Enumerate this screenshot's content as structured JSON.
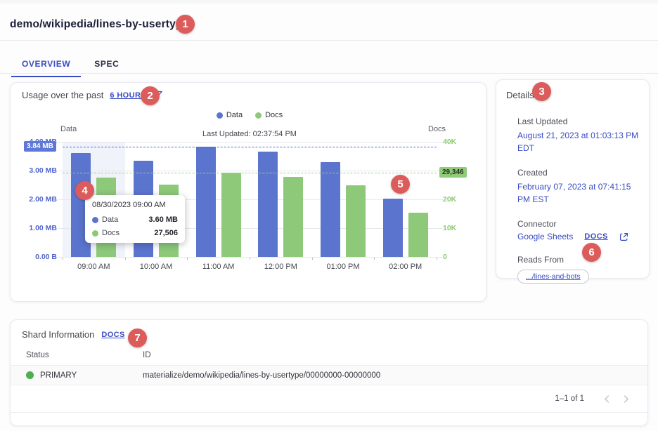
{
  "page": {
    "title": "demo/wikipedia/lines-by-usertype"
  },
  "tabs": {
    "overview": "OVERVIEW",
    "spec": "SPEC"
  },
  "annotations": {
    "badges": [
      "1",
      "2",
      "3",
      "4",
      "5",
      "6",
      "7"
    ]
  },
  "usage": {
    "title": "Usage over the past",
    "range_link": "6 HOURS",
    "last_updated": "Last Updated: 02:37:54 PM",
    "legend": {
      "data": "Data",
      "docs": "Docs"
    },
    "tooltip": {
      "title": "08/30/2023 09:00 AM",
      "data_label": "Data",
      "data_value": "3.60 MB",
      "docs_label": "Docs",
      "docs_value": "27,506"
    }
  },
  "chart_data": {
    "type": "bar",
    "categories": [
      "09:00 AM",
      "10:00 AM",
      "11:00 AM",
      "12:00 PM",
      "01:00 PM",
      "02:00 PM"
    ],
    "series": [
      {
        "name": "Data",
        "axis": "left",
        "unit": "MB",
        "color": "#5b74cd",
        "values": [
          3.6,
          3.33,
          3.84,
          3.66,
          3.29,
          2.02
        ]
      },
      {
        "name": "Docs",
        "axis": "right",
        "unit": "documents",
        "color": "#8dc979",
        "values": [
          27506,
          25200,
          29346,
          27900,
          25000,
          15400
        ]
      }
    ],
    "left_axis": {
      "title": "Data",
      "ticks": [
        "4.00 MB",
        "3.00 MB",
        "2.00 MB",
        "1.00 MB",
        "0.00 B"
      ],
      "lim": [
        0,
        4
      ]
    },
    "right_axis": {
      "title": "Docs",
      "ticks": [
        "40K",
        "30K",
        "20K",
        "10K",
        "0"
      ],
      "lim": [
        0,
        40000
      ]
    },
    "reference_lines": [
      {
        "series": "Data",
        "value": 3.84,
        "label": "3.84 MB",
        "color": "#4f69d2"
      },
      {
        "series": "Docs",
        "value": 29346,
        "label": "29,346",
        "color": "#9ccf8a"
      }
    ],
    "highlight_index": 0,
    "legend_position": "top",
    "grid": true
  },
  "details": {
    "title": "Details",
    "last_updated_label": "Last Updated",
    "last_updated_value": "August 21, 2023 at 01:03:13 PM EDT",
    "created_label": "Created",
    "created_value": "February 07, 2023 at 07:41:15 PM EST",
    "connector_label": "Connector",
    "connector_value": "Google Sheets",
    "connector_docs_label": "DOCS",
    "reads_from_label": "Reads From",
    "reads_from_chip": ".../lines-and-bots"
  },
  "shard_info": {
    "title": "Shard Information",
    "docs_label": "DOCS",
    "columns": {
      "status": "Status",
      "id": "ID"
    },
    "rows": [
      {
        "status": "PRIMARY",
        "id": "materialize/demo/wikipedia/lines-by-usertype/00000000-00000000"
      }
    ],
    "pagination": "1–1 of 1"
  },
  "colors": {
    "accent": "#3a4cc4",
    "data_blue": "#5b74cd",
    "docs_green": "#8dc979",
    "annotation_red": "#dc5b5b",
    "status_green": "#4caf50"
  }
}
